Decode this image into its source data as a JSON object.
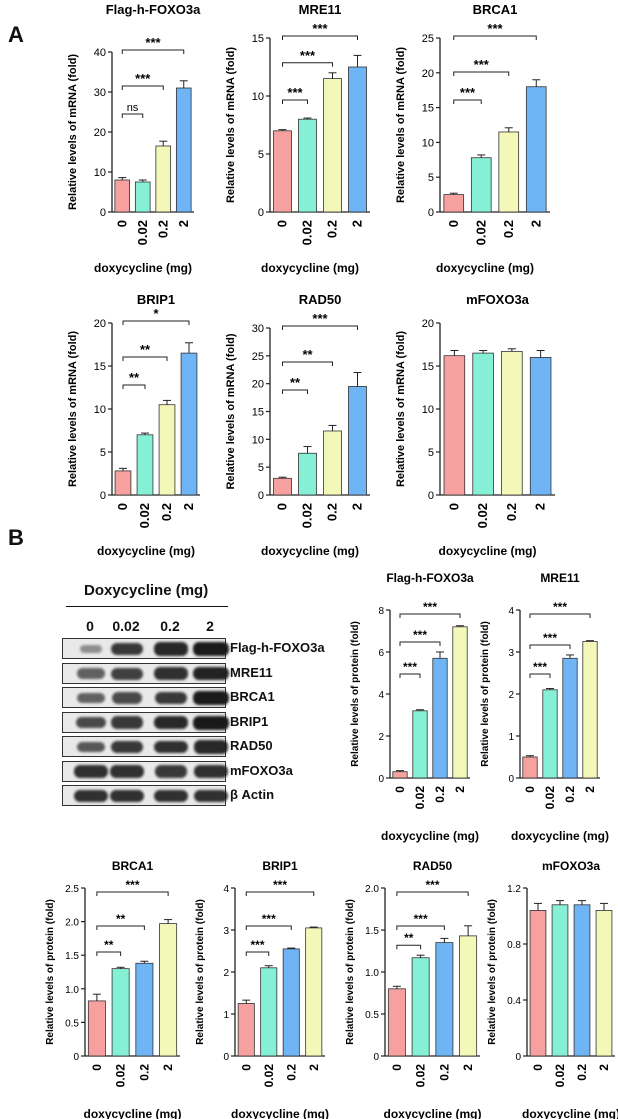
{
  "figure": {
    "panel_a_letter": "A",
    "panel_b_letter": "B",
    "colors": {
      "dose_0": "#f7a0a0",
      "dose_0_02": "#86f0d6",
      "dose_0_2": "#f3f8b8",
      "dose_2": "#6fb4f4",
      "axis": "#222222"
    }
  },
  "blot": {
    "title": "Doxycycline (mg)",
    "lanes": [
      "0",
      "0.02",
      "0.2",
      "2"
    ],
    "rows": [
      {
        "label": "Flag-h-FOXO3a",
        "intensity": [
          0.25,
          0.8,
          0.9,
          1.0
        ]
      },
      {
        "label": "MRE11",
        "intensity": [
          0.55,
          0.75,
          0.85,
          0.95
        ]
      },
      {
        "label": "BRCA1",
        "intensity": [
          0.55,
          0.7,
          0.8,
          1.0
        ]
      },
      {
        "label": "BRIP1",
        "intensity": [
          0.7,
          0.8,
          0.9,
          1.0
        ]
      },
      {
        "label": "RAD50",
        "intensity": [
          0.6,
          0.8,
          0.85,
          0.9
        ]
      },
      {
        "label": "mFOXO3a",
        "intensity": [
          0.85,
          0.85,
          0.8,
          0.85
        ]
      },
      {
        "label": "β Actin",
        "intensity": [
          0.85,
          0.85,
          0.85,
          0.85
        ]
      }
    ]
  },
  "chart_data": [
    {
      "type": "bar",
      "panel": "A",
      "title": "Flag-h-FOXO3a",
      "categories": [
        "0",
        "0.02",
        "0.2",
        "2"
      ],
      "values": [
        8,
        7.5,
        16.5,
        31
      ],
      "errors": [
        0.6,
        0.5,
        1.2,
        1.8
      ],
      "ylabel": "Relative levels of mRNA (fold)",
      "xlabel": "doxycycline (mg)",
      "ylim": [
        0,
        40
      ],
      "yticks": [
        "0",
        "10",
        "20",
        "30",
        "40"
      ],
      "significance": [
        {
          "from": 0,
          "to": 1,
          "label": "ns"
        },
        {
          "from": 0,
          "to": 2,
          "label": "***"
        },
        {
          "from": 0,
          "to": 3,
          "label": "***"
        }
      ]
    },
    {
      "type": "bar",
      "panel": "A",
      "title": "MRE11",
      "categories": [
        "0",
        "0.02",
        "0.2",
        "2"
      ],
      "values": [
        7,
        8,
        11.5,
        12.5
      ],
      "errors": [
        0.1,
        0.1,
        0.5,
        1.0
      ],
      "ylabel": "Relative levels of mRNA (fold)",
      "xlabel": "doxycycline (mg)",
      "ylim": [
        0,
        15
      ],
      "yticks": [
        "0",
        "5",
        "10",
        "15"
      ],
      "significance": [
        {
          "from": 0,
          "to": 1,
          "label": "***"
        },
        {
          "from": 0,
          "to": 2,
          "label": "***"
        },
        {
          "from": 0,
          "to": 3,
          "label": "***"
        }
      ]
    },
    {
      "type": "bar",
      "panel": "A",
      "title": "BRCA1",
      "categories": [
        "0",
        "0.02",
        "0.2",
        "2"
      ],
      "values": [
        2.5,
        7.8,
        11.5,
        18
      ],
      "errors": [
        0.2,
        0.4,
        0.6,
        1.0
      ],
      "ylabel": "Relative levels of mRNA (fold)",
      "xlabel": "doxycycline (mg)",
      "ylim": [
        0,
        25
      ],
      "yticks": [
        "0",
        "5",
        "10",
        "15",
        "20",
        "25"
      ],
      "significance": [
        {
          "from": 0,
          "to": 1,
          "label": "***"
        },
        {
          "from": 0,
          "to": 2,
          "label": "***"
        },
        {
          "from": 0,
          "to": 3,
          "label": "***"
        }
      ]
    },
    {
      "type": "bar",
      "panel": "A",
      "title": "BRIP1",
      "categories": [
        "0",
        "0.02",
        "0.2",
        "2"
      ],
      "values": [
        2.8,
        7,
        10.5,
        16.5
      ],
      "errors": [
        0.3,
        0.2,
        0.5,
        1.2
      ],
      "ylabel": "Relative levels of mRNA (fold)",
      "xlabel": "doxycycline (mg)",
      "ylim": [
        0,
        20
      ],
      "yticks": [
        "0",
        "5",
        "10",
        "15",
        "20"
      ],
      "significance": [
        {
          "from": 0,
          "to": 1,
          "label": "**"
        },
        {
          "from": 0,
          "to": 2,
          "label": "**"
        },
        {
          "from": 0,
          "to": 3,
          "label": "*"
        }
      ]
    },
    {
      "type": "bar",
      "panel": "A",
      "title": "RAD50",
      "categories": [
        "0",
        "0.02",
        "0.2",
        "2"
      ],
      "values": [
        3,
        7.5,
        11.5,
        19.5
      ],
      "errors": [
        0.2,
        1.2,
        1.0,
        2.5
      ],
      "ylabel": "Relative levels of mRNA (fold)",
      "xlabel": "doxycycline (mg)",
      "ylim": [
        0,
        30
      ],
      "yticks": [
        "0",
        "5",
        "10",
        "15",
        "20",
        "25",
        "30"
      ],
      "significance": [
        {
          "from": 0,
          "to": 1,
          "label": "**"
        },
        {
          "from": 0,
          "to": 2,
          "label": "**"
        },
        {
          "from": 0,
          "to": 3,
          "label": "***"
        }
      ]
    },
    {
      "type": "bar",
      "panel": "A",
      "title": "mFOXO3a",
      "categories": [
        "0",
        "0.02",
        "0.2",
        "2"
      ],
      "values": [
        16.2,
        16.5,
        16.7,
        16
      ],
      "errors": [
        0.6,
        0.3,
        0.3,
        0.8
      ],
      "ylabel": "Relative levels of mRNA (fold)",
      "xlabel": "doxycycline (mg)",
      "ylim": [
        0,
        20
      ],
      "yticks": [
        "0",
        "5",
        "10",
        "15",
        "20"
      ],
      "significance": []
    },
    {
      "type": "bar",
      "panel": "B",
      "title": "Flag-h-FOXO3a",
      "categories": [
        "0",
        "0.02",
        "0.2",
        "2"
      ],
      "values": [
        0.3,
        3.2,
        5.7,
        7.2
      ],
      "errors": [
        0.05,
        0.05,
        0.3,
        0.05
      ],
      "ylabel": "Relative levels of protein (fold)",
      "xlabel": "doxycycline (mg)",
      "ylim": [
        0,
        8
      ],
      "yticks": [
        "0",
        "2",
        "4",
        "6",
        "8"
      ],
      "significance": [
        {
          "from": 0,
          "to": 1,
          "label": "***"
        },
        {
          "from": 0,
          "to": 2,
          "label": "***"
        },
        {
          "from": 0,
          "to": 3,
          "label": "***"
        }
      ]
    },
    {
      "type": "bar",
      "panel": "B",
      "title": "MRE11",
      "categories": [
        "0",
        "0.02",
        "0.2",
        "2"
      ],
      "values": [
        0.5,
        2.1,
        2.85,
        3.25
      ],
      "errors": [
        0.03,
        0.03,
        0.08,
        0.02
      ],
      "ylabel": "Relative levels of protein (fold)",
      "xlabel": "doxycycline (mg)",
      "ylim": [
        0,
        4
      ],
      "yticks": [
        "0",
        "1",
        "2",
        "3",
        "4"
      ],
      "significance": [
        {
          "from": 0,
          "to": 1,
          "label": "***"
        },
        {
          "from": 0,
          "to": 2,
          "label": "***"
        },
        {
          "from": 0,
          "to": 3,
          "label": "***"
        }
      ]
    },
    {
      "type": "bar",
      "panel": "B",
      "title": "BRCA1",
      "categories": [
        "0",
        "0.02",
        "0.2",
        "2"
      ],
      "values": [
        0.82,
        1.3,
        1.38,
        1.97
      ],
      "errors": [
        0.1,
        0.02,
        0.03,
        0.06
      ],
      "ylabel": "Relative levels of protein (fold)",
      "xlabel": "doxycycline (mg)",
      "ylim": [
        0,
        2.5
      ],
      "yticks": [
        "0",
        "0.5",
        "1.0",
        "1.5",
        "2.0",
        "2.5"
      ],
      "significance": [
        {
          "from": 0,
          "to": 1,
          "label": "**"
        },
        {
          "from": 0,
          "to": 2,
          "label": "**"
        },
        {
          "from": 0,
          "to": 3,
          "label": "***"
        }
      ]
    },
    {
      "type": "bar",
      "panel": "B",
      "title": "BRIP1",
      "categories": [
        "0",
        "0.02",
        "0.2",
        "2"
      ],
      "values": [
        1.25,
        2.1,
        2.55,
        3.05
      ],
      "errors": [
        0.08,
        0.05,
        0.02,
        0.02
      ],
      "ylabel": "Relative levels of protein (fold)",
      "xlabel": "doxycycline (mg)",
      "ylim": [
        0,
        4
      ],
      "yticks": [
        "0",
        "1",
        "2",
        "3",
        "4"
      ],
      "significance": [
        {
          "from": 0,
          "to": 1,
          "label": "***"
        },
        {
          "from": 0,
          "to": 2,
          "label": "***"
        },
        {
          "from": 0,
          "to": 3,
          "label": "***"
        }
      ]
    },
    {
      "type": "bar",
      "panel": "B",
      "title": "RAD50",
      "categories": [
        "0",
        "0.02",
        "0.2",
        "2"
      ],
      "values": [
        0.8,
        1.17,
        1.35,
        1.43
      ],
      "errors": [
        0.03,
        0.03,
        0.05,
        0.12
      ],
      "ylabel": "Relative levels of protein (fold)",
      "xlabel": "doxycycline (mg)",
      "ylim": [
        0,
        2.0
      ],
      "yticks": [
        "0",
        "0.5",
        "1.0",
        "1.5",
        "2.0"
      ],
      "significance": [
        {
          "from": 0,
          "to": 1,
          "label": "**"
        },
        {
          "from": 0,
          "to": 2,
          "label": "***"
        },
        {
          "from": 0,
          "to": 3,
          "label": "***"
        }
      ]
    },
    {
      "type": "bar",
      "panel": "B",
      "title": "mFOXO3a",
      "categories": [
        "0",
        "0.02",
        "0.2",
        "2"
      ],
      "values": [
        1.04,
        1.08,
        1.08,
        1.04
      ],
      "errors": [
        0.05,
        0.03,
        0.03,
        0.05
      ],
      "ylabel": "Relative levels of protein (fold)",
      "xlabel": "doxycycline (mg)",
      "ylim": [
        0,
        1.2
      ],
      "yticks": [
        "0",
        "0.4",
        "0.8",
        "1.2"
      ],
      "significance": []
    }
  ]
}
